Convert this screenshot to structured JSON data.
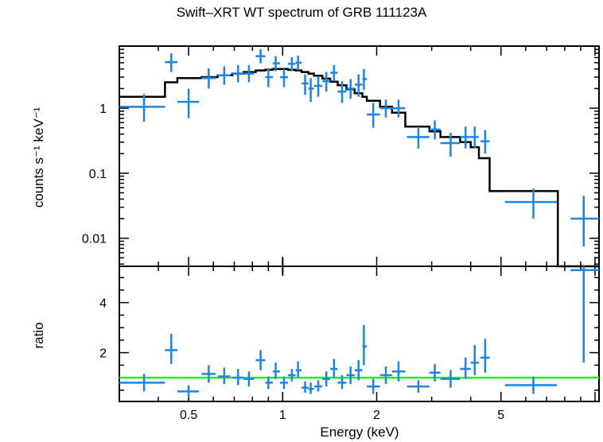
{
  "chart_data": [
    {
      "type": "scatter",
      "title": "Swift–XRT WT spectrum of GRB 111123A",
      "xlabel": "Energy (keV)",
      "ylabel": "counts s⁻¹ keV⁻¹",
      "xscale": "log",
      "yscale": "log",
      "xlim": [
        0.3,
        10.3
      ],
      "ylim": [
        0.0037,
        9.0
      ],
      "ytick_labels": [
        {
          "value": 1,
          "label": "1"
        },
        {
          "value": 0.1,
          "label": "0.1"
        },
        {
          "value": 0.01,
          "label": "0.01"
        }
      ],
      "series": [
        {
          "kind": "data",
          "color": "#1a84e8",
          "points": [
            {
              "x": 0.36,
              "xlo": 0.3,
              "xhi": 0.42,
              "y": 1.05,
              "ylo": 0.62,
              "yhi": 1.65
            },
            {
              "x": 0.44,
              "xlo": 0.42,
              "xhi": 0.46,
              "y": 5.1,
              "ylo": 3.6,
              "yhi": 7.0
            },
            {
              "x": 0.5,
              "xlo": 0.46,
              "xhi": 0.54,
              "y": 1.25,
              "ylo": 0.7,
              "yhi": 2.0
            },
            {
              "x": 0.58,
              "xlo": 0.55,
              "xhi": 0.61,
              "y": 2.9,
              "ylo": 2.0,
              "yhi": 4.1
            },
            {
              "x": 0.65,
              "xlo": 0.62,
              "xhi": 0.68,
              "y": 3.2,
              "ylo": 2.3,
              "yhi": 4.4
            },
            {
              "x": 0.72,
              "xlo": 0.69,
              "xhi": 0.75,
              "y": 3.4,
              "ylo": 2.5,
              "yhi": 4.6
            },
            {
              "x": 0.78,
              "xlo": 0.75,
              "xhi": 0.81,
              "y": 3.4,
              "ylo": 2.5,
              "yhi": 4.6
            },
            {
              "x": 0.85,
              "xlo": 0.82,
              "xhi": 0.88,
              "y": 6.3,
              "ylo": 4.9,
              "yhi": 8.1
            },
            {
              "x": 0.9,
              "xlo": 0.88,
              "xhi": 0.93,
              "y": 3.0,
              "ylo": 2.1,
              "yhi": 4.1
            },
            {
              "x": 0.95,
              "xlo": 0.93,
              "xhi": 0.98,
              "y": 4.9,
              "ylo": 3.7,
              "yhi": 6.3
            },
            {
              "x": 1.01,
              "xlo": 0.98,
              "xhi": 1.04,
              "y": 3.0,
              "ylo": 2.1,
              "yhi": 4.0
            },
            {
              "x": 1.07,
              "xlo": 1.04,
              "xhi": 1.1,
              "y": 4.8,
              "ylo": 3.7,
              "yhi": 6.1
            },
            {
              "x": 1.12,
              "xlo": 1.1,
              "xhi": 1.15,
              "y": 5.0,
              "ylo": 3.8,
              "yhi": 6.4
            },
            {
              "x": 1.18,
              "xlo": 1.15,
              "xhi": 1.21,
              "y": 2.4,
              "ylo": 1.6,
              "yhi": 3.3
            },
            {
              "x": 1.23,
              "xlo": 1.21,
              "xhi": 1.26,
              "y": 2.0,
              "ylo": 1.25,
              "yhi": 2.9
            },
            {
              "x": 1.3,
              "xlo": 1.26,
              "xhi": 1.34,
              "y": 2.2,
              "ylo": 1.5,
              "yhi": 3.1
            },
            {
              "x": 1.38,
              "xlo": 1.34,
              "xhi": 1.42,
              "y": 2.6,
              "ylo": 1.8,
              "yhi": 3.6
            },
            {
              "x": 1.46,
              "xlo": 1.42,
              "xhi": 1.5,
              "y": 3.5,
              "ylo": 2.6,
              "yhi": 4.6
            },
            {
              "x": 1.55,
              "xlo": 1.5,
              "xhi": 1.6,
              "y": 1.8,
              "ylo": 1.2,
              "yhi": 2.6
            },
            {
              "x": 1.65,
              "xlo": 1.6,
              "xhi": 1.7,
              "y": 2.0,
              "ylo": 1.4,
              "yhi": 2.8
            },
            {
              "x": 1.75,
              "xlo": 1.7,
              "xhi": 1.8,
              "y": 2.3,
              "ylo": 1.5,
              "yhi": 3.3
            },
            {
              "x": 1.82,
              "xlo": 1.8,
              "xhi": 1.86,
              "y": 2.8,
              "ylo": 1.9,
              "yhi": 4.0
            },
            {
              "x": 1.95,
              "xlo": 1.86,
              "xhi": 2.05,
              "y": 0.8,
              "ylo": 0.5,
              "yhi": 1.2
            },
            {
              "x": 2.14,
              "xlo": 2.05,
              "xhi": 2.24,
              "y": 1.0,
              "ylo": 0.72,
              "yhi": 1.35
            },
            {
              "x": 2.35,
              "xlo": 2.24,
              "xhi": 2.47,
              "y": 1.0,
              "ylo": 0.72,
              "yhi": 1.35
            },
            {
              "x": 2.72,
              "xlo": 2.5,
              "xhi": 2.95,
              "y": 0.36,
              "ylo": 0.24,
              "yhi": 0.52
            },
            {
              "x": 3.07,
              "xlo": 2.95,
              "xhi": 3.2,
              "y": 0.47,
              "ylo": 0.33,
              "yhi": 0.65
            },
            {
              "x": 3.45,
              "xlo": 3.2,
              "xhi": 3.7,
              "y": 0.29,
              "ylo": 0.18,
              "yhi": 0.42
            },
            {
              "x": 3.85,
              "xlo": 3.7,
              "xhi": 4.0,
              "y": 0.36,
              "ylo": 0.24,
              "yhi": 0.52
            },
            {
              "x": 4.12,
              "xlo": 4.0,
              "xhi": 4.25,
              "y": 0.36,
              "ylo": 0.24,
              "yhi": 0.52
            },
            {
              "x": 4.45,
              "xlo": 4.3,
              "xhi": 4.6,
              "y": 0.31,
              "ylo": 0.2,
              "yhi": 0.46
            },
            {
              "x": 6.35,
              "xlo": 5.15,
              "xhi": 7.55,
              "y": 0.036,
              "ylo": 0.02,
              "yhi": 0.058
            },
            {
              "x": 9.2,
              "xlo": 8.35,
              "xhi": 10.3,
              "y": 0.02,
              "ylo": 0.0075,
              "yhi": 0.045
            }
          ]
        },
        {
          "kind": "model",
          "color": "#000000",
          "steps": [
            {
              "x0": 0.3,
              "x1": 0.42,
              "y": 1.5
            },
            {
              "x0": 0.42,
              "x1": 0.46,
              "y": 2.5
            },
            {
              "x0": 0.46,
              "x1": 0.55,
              "y": 2.9
            },
            {
              "x0": 0.55,
              "x1": 0.62,
              "y": 3.0
            },
            {
              "x0": 0.62,
              "x1": 0.69,
              "y": 3.2
            },
            {
              "x0": 0.69,
              "x1": 0.75,
              "y": 3.4
            },
            {
              "x0": 0.75,
              "x1": 0.82,
              "y": 3.6
            },
            {
              "x0": 0.82,
              "x1": 0.88,
              "y": 3.8
            },
            {
              "x0": 0.88,
              "x1": 0.93,
              "y": 3.9
            },
            {
              "x0": 0.93,
              "x1": 0.98,
              "y": 4.0
            },
            {
              "x0": 0.98,
              "x1": 1.04,
              "y": 4.0
            },
            {
              "x0": 1.04,
              "x1": 1.1,
              "y": 3.9
            },
            {
              "x0": 1.1,
              "x1": 1.15,
              "y": 3.8
            },
            {
              "x0": 1.15,
              "x1": 1.21,
              "y": 3.6
            },
            {
              "x0": 1.21,
              "x1": 1.26,
              "y": 3.4
            },
            {
              "x0": 1.26,
              "x1": 1.34,
              "y": 3.15
            },
            {
              "x0": 1.34,
              "x1": 1.42,
              "y": 2.85
            },
            {
              "x0": 1.42,
              "x1": 1.5,
              "y": 2.55
            },
            {
              "x0": 1.5,
              "x1": 1.6,
              "y": 2.25
            },
            {
              "x0": 1.6,
              "x1": 1.7,
              "y": 1.95
            },
            {
              "x0": 1.7,
              "x1": 1.8,
              "y": 1.7
            },
            {
              "x0": 1.8,
              "x1": 1.86,
              "y": 1.5
            },
            {
              "x0": 1.86,
              "x1": 2.05,
              "y": 1.3
            },
            {
              "x0": 2.05,
              "x1": 2.24,
              "y": 1.05
            },
            {
              "x0": 2.24,
              "x1": 2.47,
              "y": 0.85
            },
            {
              "x0": 2.47,
              "x1": 2.95,
              "y": 0.52
            },
            {
              "x0": 2.95,
              "x1": 3.2,
              "y": 0.44
            },
            {
              "x0": 3.2,
              "x1": 3.7,
              "y": 0.36
            },
            {
              "x0": 3.7,
              "x1": 4.0,
              "y": 0.3
            },
            {
              "x0": 4.0,
              "x1": 4.25,
              "y": 0.25
            },
            {
              "x0": 4.25,
              "x1": 4.6,
              "y": 0.17
            },
            {
              "x0": 4.6,
              "x1": 7.6,
              "y": 0.053
            },
            {
              "x0": 7.6,
              "x1": 10.3,
              "y": 0.002
            }
          ]
        }
      ]
    },
    {
      "type": "scatter",
      "xlabel": "Energy (keV)",
      "ylabel": "ratio",
      "xscale": "log",
      "yscale": "linear",
      "xlim": [
        0.3,
        10.3
      ],
      "ylim": [
        0.05,
        5.45
      ],
      "xtick_labels": [
        {
          "value": 0.5,
          "label": "0.5"
        },
        {
          "value": 1,
          "label": "1"
        },
        {
          "value": 2,
          "label": "2"
        },
        {
          "value": 5,
          "label": "5"
        }
      ],
      "ytick_labels": [
        {
          "value": 2,
          "label": "2"
        },
        {
          "value": 4,
          "label": "4"
        }
      ],
      "reference_line": {
        "y": 1.0,
        "color": "#22ee22"
      },
      "series": [
        {
          "kind": "data",
          "color": "#1a84e8",
          "points": [
            {
              "x": 0.36,
              "xlo": 0.3,
              "xhi": 0.42,
              "y": 0.8,
              "ylo": 0.45,
              "yhi": 1.15
            },
            {
              "x": 0.44,
              "xlo": 0.42,
              "xhi": 0.46,
              "y": 2.1,
              "ylo": 1.55,
              "yhi": 2.75
            },
            {
              "x": 0.5,
              "xlo": 0.46,
              "xhi": 0.54,
              "y": 0.45,
              "ylo": 0.2,
              "yhi": 0.7
            },
            {
              "x": 0.58,
              "xlo": 0.55,
              "xhi": 0.61,
              "y": 1.15,
              "ylo": 0.8,
              "yhi": 1.5
            },
            {
              "x": 0.65,
              "xlo": 0.62,
              "xhi": 0.68,
              "y": 1.05,
              "ylo": 0.75,
              "yhi": 1.4
            },
            {
              "x": 0.72,
              "xlo": 0.69,
              "xhi": 0.75,
              "y": 1.0,
              "ylo": 0.7,
              "yhi": 1.35
            },
            {
              "x": 0.78,
              "xlo": 0.75,
              "xhi": 0.81,
              "y": 0.95,
              "ylo": 0.65,
              "yhi": 1.25
            },
            {
              "x": 0.85,
              "xlo": 0.82,
              "xhi": 0.88,
              "y": 1.7,
              "ylo": 1.3,
              "yhi": 2.1
            },
            {
              "x": 0.9,
              "xlo": 0.88,
              "xhi": 0.93,
              "y": 0.8,
              "ylo": 0.55,
              "yhi": 1.05
            },
            {
              "x": 0.95,
              "xlo": 0.93,
              "xhi": 0.98,
              "y": 1.25,
              "ylo": 0.95,
              "yhi": 1.6
            },
            {
              "x": 1.01,
              "xlo": 0.98,
              "xhi": 1.04,
              "y": 0.8,
              "ylo": 0.55,
              "yhi": 1.05
            },
            {
              "x": 1.07,
              "xlo": 1.04,
              "xhi": 1.1,
              "y": 1.1,
              "ylo": 0.85,
              "yhi": 1.35
            },
            {
              "x": 1.12,
              "xlo": 1.1,
              "xhi": 1.15,
              "y": 1.3,
              "ylo": 1.0,
              "yhi": 1.65
            },
            {
              "x": 1.18,
              "xlo": 1.15,
              "xhi": 1.21,
              "y": 0.6,
              "ylo": 0.4,
              "yhi": 0.85
            },
            {
              "x": 1.23,
              "xlo": 1.21,
              "xhi": 1.26,
              "y": 0.55,
              "ylo": 0.35,
              "yhi": 0.8
            },
            {
              "x": 1.3,
              "xlo": 1.26,
              "xhi": 1.34,
              "y": 0.65,
              "ylo": 0.45,
              "yhi": 0.9
            },
            {
              "x": 1.38,
              "xlo": 1.34,
              "xhi": 1.42,
              "y": 0.95,
              "ylo": 0.65,
              "yhi": 1.25
            },
            {
              "x": 1.46,
              "xlo": 1.42,
              "xhi": 1.5,
              "y": 1.35,
              "ylo": 1.0,
              "yhi": 1.75
            },
            {
              "x": 1.55,
              "xlo": 1.5,
              "xhi": 1.6,
              "y": 0.8,
              "ylo": 0.55,
              "yhi": 1.1
            },
            {
              "x": 1.65,
              "xlo": 1.6,
              "xhi": 1.7,
              "y": 1.1,
              "ylo": 0.75,
              "yhi": 1.45
            },
            {
              "x": 1.75,
              "xlo": 1.7,
              "xhi": 1.8,
              "y": 1.3,
              "ylo": 0.9,
              "yhi": 1.7
            },
            {
              "x": 1.82,
              "xlo": 1.8,
              "xhi": 1.86,
              "y": 2.25,
              "ylo": 1.5,
              "yhi": 3.1
            },
            {
              "x": 1.95,
              "xlo": 1.86,
              "xhi": 2.05,
              "y": 0.65,
              "ylo": 0.35,
              "yhi": 0.95
            },
            {
              "x": 2.14,
              "xlo": 2.05,
              "xhi": 2.24,
              "y": 1.1,
              "ylo": 0.75,
              "yhi": 1.45
            },
            {
              "x": 2.35,
              "xlo": 2.24,
              "xhi": 2.47,
              "y": 1.25,
              "ylo": 0.85,
              "yhi": 1.65
            },
            {
              "x": 2.72,
              "xlo": 2.5,
              "xhi": 2.95,
              "y": 0.65,
              "ylo": 0.4,
              "yhi": 0.9
            },
            {
              "x": 3.07,
              "xlo": 2.95,
              "xhi": 3.2,
              "y": 1.2,
              "ylo": 0.85,
              "yhi": 1.55
            },
            {
              "x": 3.45,
              "xlo": 3.2,
              "xhi": 3.7,
              "y": 0.95,
              "ylo": 0.6,
              "yhi": 1.3
            },
            {
              "x": 3.85,
              "xlo": 3.7,
              "xhi": 4.0,
              "y": 1.35,
              "ylo": 0.95,
              "yhi": 1.8
            },
            {
              "x": 4.12,
              "xlo": 4.0,
              "xhi": 4.25,
              "y": 1.6,
              "ylo": 1.1,
              "yhi": 2.3
            },
            {
              "x": 4.45,
              "xlo": 4.3,
              "xhi": 4.6,
              "y": 1.8,
              "ylo": 1.2,
              "yhi": 2.55
            },
            {
              "x": 6.35,
              "xlo": 5.15,
              "xhi": 7.55,
              "y": 0.7,
              "ylo": 0.35,
              "yhi": 1.05
            },
            {
              "x": 9.2,
              "xlo": 8.35,
              "xhi": 10.3,
              "y": 5.3,
              "ylo": 1.6,
              "yhi": 5.45
            }
          ]
        }
      ]
    }
  ]
}
